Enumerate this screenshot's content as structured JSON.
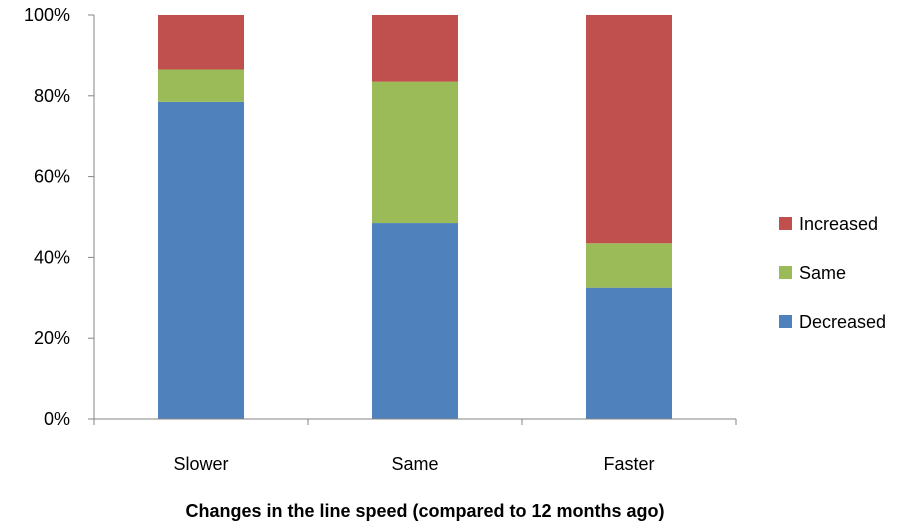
{
  "chart_data": {
    "type": "bar",
    "stacked": "percent",
    "categories": [
      "Slower",
      "Same",
      "Faster"
    ],
    "series": [
      {
        "name": "Decreased",
        "values": [
          78.5,
          48.5,
          32.5
        ],
        "color": "#4F81BD"
      },
      {
        "name": "Same",
        "values": [
          8.0,
          35.0,
          11.0
        ],
        "color": "#9BBB59"
      },
      {
        "name": "Increased",
        "values": [
          13.5,
          16.5,
          56.5
        ],
        "color": "#C0504D"
      }
    ],
    "title": "",
    "xlabel": "Changes in the line speed (compared to 12 months ago)",
    "ylabel": "",
    "ylim": [
      0,
      100
    ],
    "yticks": [
      "0%",
      "20%",
      "40%",
      "60%",
      "80%",
      "100%"
    ],
    "grid": false,
    "legend": {
      "position": "right",
      "order": [
        "Increased",
        "Same",
        "Decreased"
      ]
    }
  }
}
